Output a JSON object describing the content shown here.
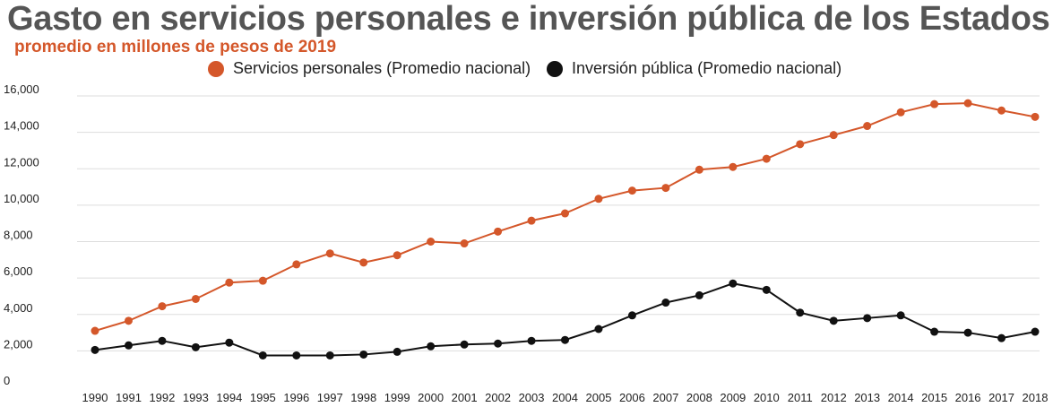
{
  "chart_data": {
    "type": "line",
    "title": "Gasto en servicios personales e inversión pública de los Estados",
    "subtitle": "promedio en millones de pesos de 2019",
    "x": [
      "1990",
      "1991",
      "1992",
      "1993",
      "1994",
      "1995",
      "1996",
      "1997",
      "1998",
      "1999",
      "2000",
      "2001",
      "2002",
      "2003",
      "2004",
      "2005",
      "2006",
      "2007",
      "2008",
      "2009",
      "2010",
      "2011",
      "2012",
      "2013",
      "2014",
      "2015",
      "2016",
      "2017",
      "2018"
    ],
    "ylim": [
      0,
      16000
    ],
    "yticks": [
      0,
      2000,
      4000,
      6000,
      8000,
      10000,
      12000,
      14000,
      16000
    ],
    "ytick_labels": [
      "0",
      "2,000",
      "4,000",
      "6,000",
      "8,000",
      "10,000",
      "12,000",
      "14,000",
      "16,000"
    ],
    "grid": true,
    "legend_position": "top",
    "series": [
      {
        "name": "Servicios personales (Promedio nacional)",
        "color": "#d4572a",
        "values": [
          3100,
          3650,
          4450,
          4850,
          5750,
          5850,
          6750,
          7350,
          6850,
          7250,
          8000,
          7900,
          8550,
          9150,
          9550,
          10350,
          10800,
          10950,
          11950,
          12100,
          12550,
          13350,
          13850,
          14350,
          15100,
          15550,
          15600,
          15200,
          14850
        ]
      },
      {
        "name": "Inversión pública (Promedio nacional)",
        "color": "#111111",
        "values": [
          2050,
          2300,
          2550,
          2200,
          2450,
          1750,
          1750,
          1750,
          1800,
          1950,
          2250,
          2350,
          2400,
          2550,
          2600,
          3200,
          3950,
          4650,
          5050,
          5700,
          5350,
          4100,
          3650,
          3800,
          3950,
          3050,
          3000,
          2700,
          3050
        ]
      }
    ]
  }
}
